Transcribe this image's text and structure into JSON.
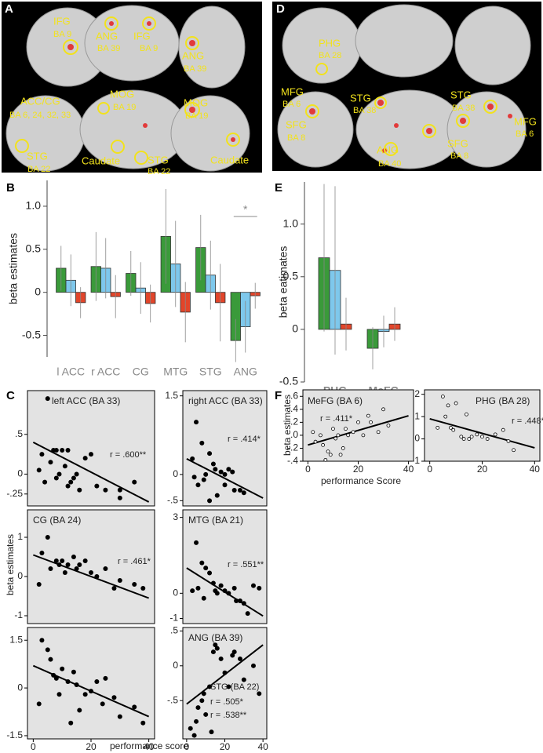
{
  "panel_A": {
    "label": "A",
    "labels": [
      "IFG",
      "BA 9",
      "ANG",
      "BA 39",
      "IFG",
      "BA 9",
      "ANG",
      "BA 39",
      "ACC/CG",
      "BA 6, 24, 32, 33",
      "STG",
      "BA 22",
      "MOG",
      "BA 19",
      "Caudate",
      "STG",
      "BA 22",
      "MOG",
      "BA 19",
      "Caudate"
    ]
  },
  "panel_D": {
    "label": "D",
    "labels": [
      "PHG",
      "BA 28",
      "MFG",
      "BA 6",
      "SFG",
      "BA 8",
      "STG",
      "BA 38",
      "ANG",
      "BA 40",
      "STG",
      "BA 38",
      "MFG",
      "BA 6",
      "SFG",
      "BA 8"
    ]
  },
  "panel_B": {
    "label": "B"
  },
  "panel_E": {
    "label": "E"
  },
  "panel_C": {
    "label": "C",
    "y_label": "beta estimates",
    "x_label": "performance score"
  },
  "panel_F": {
    "label": "F",
    "y_label": "beta estimates",
    "x_label": "performance Score"
  },
  "chart_data": [
    {
      "type": "bar",
      "y_label": "beta estimates",
      "categories": [
        "l ACC",
        "r ACC",
        "CG",
        "MTG",
        "STG",
        "ANG"
      ],
      "label_color": "#888888",
      "label_bold": false,
      "ylim": [
        -0.75,
        1.3
      ],
      "yticks": [
        -0.5,
        0,
        0.5,
        {
          "value": 1,
          "label": "1.0"
        }
      ],
      "series": [
        {
          "color": "#3a9a3a",
          "values": [
            0.28,
            0.3,
            0.22,
            0.65,
            0.52,
            -0.56
          ],
          "errors": [
            0.26,
            0.4,
            0.26,
            0.55,
            0.38,
            0.25
          ]
        },
        {
          "color": "#7ec8ec",
          "values": [
            0.14,
            0.28,
            0.05,
            0.33,
            0.2,
            -0.4
          ],
          "errors": [
            0.3,
            0.35,
            0.3,
            0.5,
            0.4,
            0.3
          ]
        },
        {
          "color": "#e2452a",
          "values": [
            -0.12,
            -0.05,
            -0.13,
            -0.23,
            -0.12,
            -0.04
          ],
          "errors": [
            0.18,
            0.25,
            0.22,
            0.35,
            0.45,
            0.15
          ]
        }
      ],
      "annotations": [
        "*"
      ]
    },
    {
      "type": "bar",
      "y_label": "beta eatimates",
      "categories": [
        "PHG",
        "MeFG"
      ],
      "label_color": "#888888",
      "label_bold": true,
      "ylim": [
        -0.5,
        1.4
      ],
      "yticks": [
        -0.5,
        0,
        0.5,
        {
          "value": 1,
          "label": "1.0"
        }
      ],
      "series": [
        {
          "color": "#3a9a3a",
          "values": [
            0.68,
            -0.18
          ],
          "errors": [
            0.7,
            0.2
          ]
        },
        {
          "color": "#7ec8ec",
          "values": [
            0.56,
            -0.02
          ],
          "errors": [
            0.8,
            0.15
          ]
        },
        {
          "color": "#e2452a",
          "values": [
            0.05,
            0.05
          ],
          "errors": [
            0.25,
            0.16
          ]
        }
      ],
      "annotations": []
    },
    {
      "type": "scatter",
      "title": "left ACC (BA 33)",
      "annotations": [
        "r = .600**"
      ],
      "marker": "filled",
      "xlim": [
        -2,
        42
      ],
      "ylim": [
        -0.4,
        1.05
      ],
      "yticks": [
        {
          "value": 0.5,
          "label": ".5"
        },
        0,
        {
          "value": -0.25,
          "label": "-.25"
        }
      ],
      "x": [
        5,
        8,
        2,
        10,
        4,
        12,
        6,
        15,
        20,
        7,
        11,
        14,
        18,
        3,
        22,
        25,
        30,
        30,
        9,
        13,
        16,
        35,
        8,
        12
      ],
      "values": [
        0.95,
        0.3,
        0.05,
        0.3,
        -0.1,
        0.3,
        0.15,
        0.0,
        0.25,
        0.3,
        0.1,
        -0.05,
        0.2,
        0.25,
        -0.15,
        -0.2,
        -0.2,
        -0.3,
        0.0,
        -0.1,
        -0.2,
        -0.1,
        -0.05,
        -0.15
      ],
      "trend_line": {
        "x": [
          0,
          40
        ],
        "values": [
          0.4,
          -0.35
        ]
      }
    },
    {
      "type": "scatter",
      "title": "right ACC (BA 33)",
      "annotations": [
        "r = .414*"
      ],
      "marker": "filled",
      "xlim": [
        -2,
        42
      ],
      "ylim": [
        -0.6,
        1.6
      ],
      "yticks": [
        1.5,
        0,
        {
          "value": -0.5,
          "label": "-.5"
        }
      ],
      "x": [
        5,
        8,
        3,
        12,
        14,
        15,
        10,
        18,
        20,
        22,
        25,
        28,
        30,
        6,
        9,
        16,
        12,
        4,
        20,
        24
      ],
      "values": [
        1.0,
        0.6,
        0.3,
        0.4,
        0.2,
        0.1,
        0.0,
        0.05,
        0.0,
        0.1,
        -0.3,
        -0.3,
        -0.35,
        -0.2,
        -0.1,
        -0.4,
        -0.5,
        -0.05,
        -0.2,
        0.05
      ],
      "trend_line": {
        "x": [
          0,
          40
        ],
        "values": [
          0.3,
          -0.45
        ]
      }
    },
    {
      "type": "scatter",
      "title": "CG (BA 24)",
      "annotations": [
        "r = .461*"
      ],
      "marker": "filled",
      "xlim": [
        -2,
        42
      ],
      "ylim": [
        -1.2,
        1.7
      ],
      "yticks": [
        1,
        0,
        -1
      ],
      "x": [
        3,
        5,
        8,
        10,
        12,
        14,
        15,
        18,
        20,
        22,
        25,
        30,
        35,
        6,
        9,
        11,
        16,
        2,
        28,
        38
      ],
      "values": [
        0.6,
        1.0,
        0.4,
        0.4,
        0.3,
        0.5,
        0.2,
        0.4,
        0.1,
        0.0,
        0.2,
        -0.1,
        -0.2,
        0.2,
        0.3,
        0.1,
        0.3,
        -0.2,
        -0.3,
        -0.3
      ],
      "trend_line": {
        "x": [
          0,
          40
        ],
        "values": [
          0.55,
          -0.55
        ]
      }
    },
    {
      "type": "scatter",
      "title": "MTG (BA 21)",
      "annotations": [
        "r = .551**"
      ],
      "marker": "filled",
      "xlim": [
        -2,
        42
      ],
      "ylim": [
        -1.2,
        3.3
      ],
      "yticks": [
        3,
        0,
        -1
      ],
      "x": [
        5,
        8,
        10,
        12,
        14,
        15,
        18,
        20,
        22,
        25,
        28,
        30,
        35,
        3,
        6,
        9,
        16,
        26,
        32,
        38
      ],
      "values": [
        2.0,
        1.2,
        1.0,
        0.8,
        0.4,
        0.1,
        0.3,
        0.1,
        0.0,
        0.2,
        -0.3,
        -0.4,
        0.3,
        0.1,
        0.2,
        -0.2,
        0.0,
        -0.3,
        -0.8,
        0.2
      ],
      "trend_line": {
        "x": [
          0,
          40
        ],
        "values": [
          1.0,
          -0.9
        ]
      }
    },
    {
      "type": "scatter",
      "annotations": [],
      "marker": "filled",
      "xlim": [
        -2,
        42
      ],
      "ylim": [
        -1.6,
        1.9
      ],
      "yticks": [
        1.5,
        0,
        -1.5
      ],
      "xticks": [
        0,
        20,
        40
      ],
      "x": [
        3,
        5,
        6,
        7,
        8,
        10,
        12,
        14,
        15,
        18,
        20,
        22,
        24,
        25,
        28,
        30,
        35,
        38,
        2,
        16,
        9,
        13
      ],
      "values": [
        1.5,
        1.2,
        0.9,
        0.4,
        0.3,
        0.6,
        0.2,
        0.5,
        0.1,
        -0.2,
        -0.1,
        0.2,
        -0.5,
        0.3,
        -0.3,
        -0.9,
        -0.6,
        -1.1,
        -0.5,
        -0.7,
        -0.2,
        -1.1
      ],
      "trend_line": {
        "x": [
          0,
          40
        ],
        "values": [
          0.7,
          -0.9
        ]
      }
    },
    {
      "type": "scatter",
      "title": "ANG (BA 39)",
      "annotations": [
        "STG (BA 22)",
        "r = .505*",
        "r = .538**"
      ],
      "marker": "filled",
      "xlim": [
        -2,
        42
      ],
      "ylim": [
        -1.05,
        0.55
      ],
      "yticks": [
        {
          "value": 0.5,
          "label": ".5"
        },
        0,
        {
          "value": -0.5,
          "label": "-.5"
        }
      ],
      "xticks": [
        0,
        20,
        40
      ],
      "x": [
        2,
        5,
        6,
        8,
        10,
        12,
        14,
        15,
        16,
        18,
        20,
        22,
        25,
        28,
        30,
        35,
        38,
        4,
        9,
        13,
        24
      ],
      "values": [
        -0.9,
        -0.8,
        -0.6,
        -0.5,
        -0.7,
        -0.3,
        0.2,
        0.3,
        0.25,
        0.1,
        -0.1,
        -0.3,
        0.2,
        0.1,
        -0.2,
        0.0,
        -0.4,
        -1.0,
        -0.4,
        -0.95,
        0.15
      ],
      "trend_line": {
        "x": [
          0,
          40
        ],
        "values": [
          -0.55,
          0.3
        ]
      }
    },
    {
      "type": "scatter",
      "title": "MeFG (BA 6)",
      "annotations": [
        "r = .411*"
      ],
      "marker": "hollow",
      "xlim": [
        -2,
        42
      ],
      "ylim": [
        -0.4,
        0.7
      ],
      "yticks": [
        {
          "value": 0.6,
          "label": ".6"
        },
        {
          "value": 0.4,
          "label": ".4"
        },
        {
          "value": 0.2,
          "label": ".2"
        },
        {
          "value": 0,
          "label": ".0"
        },
        {
          "value": -0.2,
          "label": "-.2"
        },
        {
          "value": -0.4,
          "label": "-.4"
        }
      ],
      "xticks": [
        0,
        20,
        40
      ],
      "x": [
        3,
        5,
        8,
        10,
        12,
        14,
        15,
        18,
        20,
        22,
        25,
        28,
        30,
        32,
        6,
        9,
        13,
        16,
        2,
        11,
        7,
        24
      ],
      "values": [
        -0.1,
        0.0,
        -0.25,
        0.1,
        0.0,
        -0.2,
        0.1,
        0.05,
        0.2,
        0.0,
        0.2,
        0.05,
        0.4,
        0.15,
        -0.15,
        -0.3,
        -0.3,
        0.0,
        0.05,
        -0.05,
        -0.38,
        0.3
      ],
      "trend_line": {
        "x": [
          0,
          40
        ],
        "values": [
          -0.15,
          0.3
        ]
      }
    },
    {
      "type": "scatter",
      "title": "PHG (BA 28)",
      "annotations": [
        "r = .448*"
      ],
      "marker": "hollow",
      "xlim": [
        -2,
        42
      ],
      "ylim": [
        -1.0,
        2.2
      ],
      "yticks": [
        2,
        1,
        0,
        -1
      ],
      "xticks": [
        0,
        20,
        40
      ],
      "x": [
        5,
        6,
        8,
        10,
        12,
        14,
        15,
        18,
        20,
        22,
        25,
        28,
        30,
        32,
        3,
        9,
        13,
        16,
        7
      ],
      "values": [
        1.9,
        1.0,
        0.5,
        1.6,
        0.1,
        1.1,
        0.0,
        0.2,
        0.1,
        0.0,
        0.2,
        0.4,
        -0.1,
        -0.5,
        0.5,
        0.4,
        0.0,
        0.1,
        1.5
      ],
      "trend_line": {
        "x": [
          0,
          40
        ],
        "values": [
          0.9,
          -0.4
        ]
      }
    }
  ]
}
